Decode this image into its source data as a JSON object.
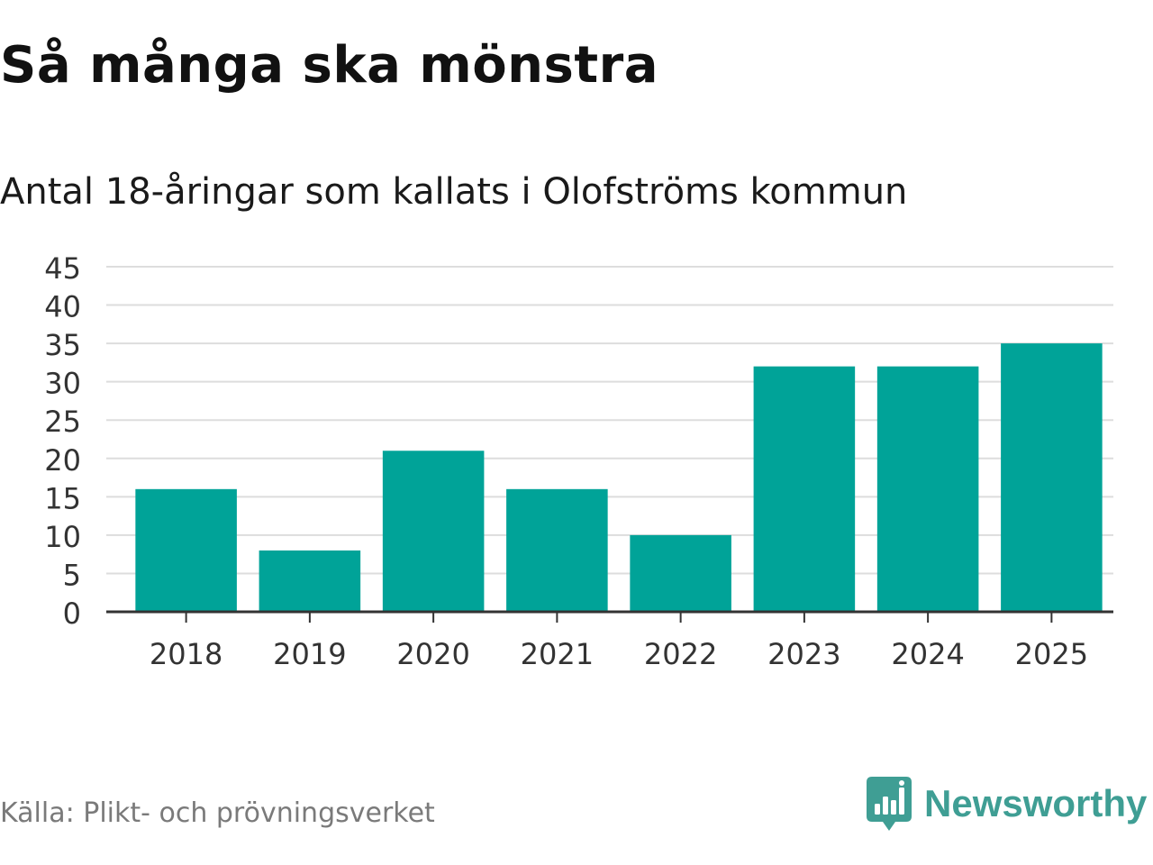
{
  "title": "Så många ska mönstra",
  "subtitle": "Antal 18-åringar som kallats i Olofströms kommun",
  "source": "Källa: Plikt- och prövningsverket",
  "brand": {
    "name": "Newsworthy",
    "icon": "newsworthy-logo-icon",
    "color": "#3f9e94"
  },
  "colors": {
    "bar": "#00a398",
    "grid": "#dddddd",
    "axis": "#333333",
    "tick_text": "#333333"
  },
  "chart_data": {
    "type": "bar",
    "title": "Så många ska mönstra",
    "subtitle": "Antal 18-åringar som kallats i Olofströms kommun",
    "xlabel": "",
    "ylabel": "",
    "categories": [
      "2018",
      "2019",
      "2020",
      "2021",
      "2022",
      "2023",
      "2024",
      "2025"
    ],
    "values": [
      16,
      8,
      21,
      16,
      10,
      32,
      32,
      35
    ],
    "ylim": [
      0,
      45
    ],
    "yticks": [
      "0",
      "5",
      "10",
      "15",
      "20",
      "25",
      "30",
      "35",
      "40",
      "45"
    ],
    "grid": true,
    "legend": "none"
  }
}
